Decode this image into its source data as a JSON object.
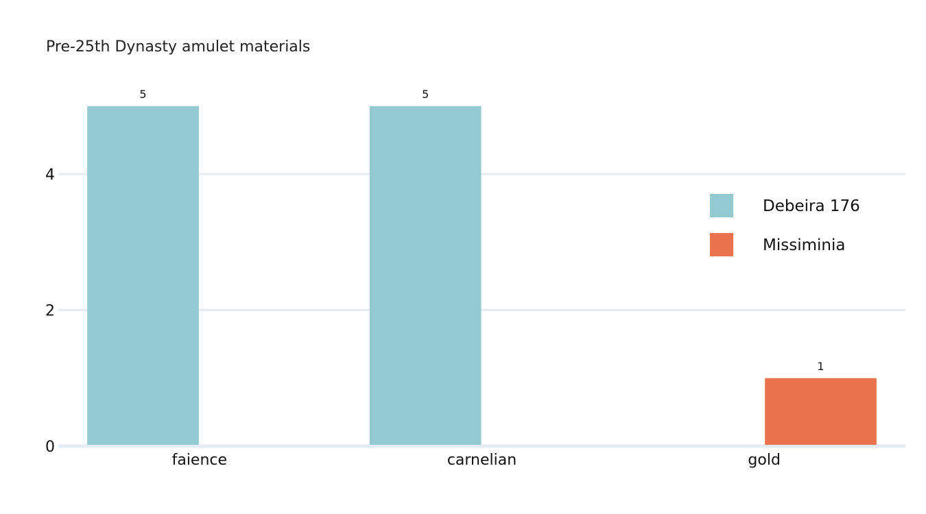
{
  "chart_data": {
    "type": "bar",
    "title": "Pre-25th Dynasty amulet materials",
    "xlabel": "",
    "ylabel": "",
    "categories": [
      "faience",
      "carnelian",
      "gold"
    ],
    "series": [
      {
        "name": "Debeira 176",
        "values": [
          5,
          5,
          null
        ],
        "color": "#93c9d1"
      },
      {
        "name": "Missiminia",
        "values": [
          null,
          null,
          1
        ],
        "color": "#ea724d"
      }
    ],
    "ylim": [
      0,
      5.25
    ],
    "yticks": [
      0,
      2,
      4
    ],
    "grid": true,
    "legend_position": "right"
  }
}
